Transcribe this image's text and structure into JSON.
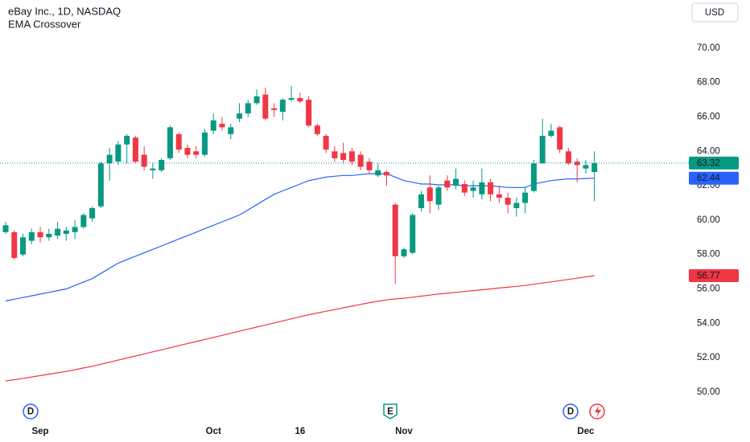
{
  "header": {
    "title": "eBay Inc., 1D, NASDAQ",
    "indicator": "EMA Crossover",
    "currency": "USD"
  },
  "events": [
    {
      "label": "D"
    },
    {
      "label": "E"
    },
    {
      "label": "D"
    }
  ],
  "chart_data": {
    "type": "candlestick",
    "up_color": "#089981",
    "down_color": "#f23645",
    "ylim": [
      48.5,
      72.8
    ],
    "yticks": [
      {
        "value": 50,
        "label": "50.00"
      },
      {
        "value": 52,
        "label": "52.00"
      },
      {
        "value": 54,
        "label": "54.00"
      },
      {
        "value": 56,
        "label": "56.00"
      },
      {
        "value": 58,
        "label": "58.00"
      },
      {
        "value": 60,
        "label": "60.00"
      },
      {
        "value": 62,
        "label": "62.00"
      },
      {
        "value": 64,
        "label": "64.00"
      },
      {
        "value": 66,
        "label": "66.00"
      },
      {
        "value": 68,
        "label": "68.00"
      },
      {
        "value": 70,
        "label": "70.00"
      }
    ],
    "xticks": [
      {
        "value": 4,
        "label": "Sep"
      },
      {
        "value": 24,
        "label": "Oct"
      },
      {
        "value": 34,
        "label": "16"
      },
      {
        "value": 46,
        "label": "Nov"
      },
      {
        "value": 67,
        "label": "Dec"
      }
    ],
    "grid": false,
    "open": [
      59.3,
      59.3,
      58.0,
      58.8,
      59.3,
      59.0,
      59.1,
      59.2,
      59.3,
      59.6,
      60.1,
      60.8,
      63.3,
      63.4,
      64.4,
      64.8,
      63.8,
      62.9,
      62.9,
      63.6,
      65.0,
      64.2,
      64.0,
      63.8,
      65.2,
      65.6,
      65.0,
      65.9,
      66.2,
      66.8,
      67.3,
      66.5,
      66.3,
      67.0,
      67.1,
      67.0,
      65.5,
      64.9,
      64.0,
      63.9,
      64.0,
      63.8,
      63.4,
      62.6,
      62.8,
      60.9,
      57.9,
      58.1,
      60.7,
      61.9,
      60.9,
      62.3,
      62.0,
      62.1,
      61.7,
      61.5,
      62.2,
      61.5,
      61.3,
      60.7,
      61.0,
      61.7,
      63.3,
      64.9,
      65.4,
      64.0,
      63.4,
      63.0,
      62.8
    ],
    "high": [
      59.9,
      59.4,
      59.2,
      59.5,
      59.6,
      59.5,
      59.9,
      59.6,
      60.0,
      60.4,
      60.8,
      63.4,
      64.2,
      64.6,
      65.0,
      64.9,
      64.3,
      63.3,
      63.6,
      65.5,
      65.1,
      64.4,
      64.3,
      65.3,
      66.2,
      66.0,
      65.6,
      66.8,
      67.0,
      67.6,
      67.7,
      66.8,
      67.1,
      67.8,
      67.4,
      67.2,
      65.6,
      65.0,
      64.3,
      64.5,
      64.2,
      64.0,
      63.6,
      63.3,
      62.9,
      61.0,
      58.4,
      60.4,
      61.7,
      62.6,
      62.0,
      62.6,
      63.0,
      62.3,
      62.3,
      63.0,
      62.4,
      62.0,
      61.6,
      61.3,
      61.9,
      63.5,
      65.9,
      65.6,
      65.5,
      64.2,
      63.6,
      63.5,
      64.0
    ],
    "low": [
      59.2,
      57.7,
      57.9,
      58.6,
      58.7,
      58.8,
      58.9,
      58.8,
      58.9,
      59.5,
      59.9,
      60.7,
      62.3,
      63.2,
      63.3,
      63.3,
      62.9,
      62.4,
      62.8,
      63.5,
      63.9,
      63.6,
      63.6,
      63.7,
      65.0,
      65.2,
      64.7,
      65.7,
      66.0,
      66.7,
      65.8,
      66.0,
      65.8,
      66.9,
      66.8,
      65.4,
      64.9,
      63.9,
      63.4,
      63.3,
      63.2,
      62.9,
      62.7,
      62.5,
      62.0,
      56.3,
      57.8,
      58.0,
      60.5,
      60.4,
      60.6,
      61.7,
      61.8,
      61.4,
      61.3,
      61.2,
      61.1,
      61.0,
      60.4,
      60.2,
      60.4,
      61.6,
      63.3,
      64.8,
      63.9,
      63.2,
      62.2,
      62.7,
      61.1
    ],
    "close": [
      59.7,
      57.8,
      59.0,
      59.3,
      59.0,
      59.2,
      59.5,
      59.4,
      59.6,
      60.3,
      60.7,
      63.3,
      63.8,
      64.4,
      64.9,
      63.4,
      63.1,
      63.0,
      63.5,
      65.4,
      64.1,
      63.8,
      63.8,
      65.1,
      65.8,
      65.4,
      65.4,
      66.2,
      66.8,
      67.2,
      65.9,
      66.4,
      67.0,
      67.1,
      66.9,
      65.5,
      65.0,
      64.1,
      63.6,
      63.5,
      63.4,
      63.1,
      62.9,
      62.9,
      62.6,
      57.9,
      58.3,
      60.3,
      61.5,
      61.1,
      61.9,
      61.9,
      62.4,
      61.6,
      61.9,
      62.2,
      61.5,
      61.3,
      60.9,
      61.0,
      61.6,
      63.3,
      64.9,
      65.2,
      64.1,
      63.3,
      63.2,
      63.2,
      63.32
    ],
    "series": [
      {
        "color": "#2962ff",
        "values": [
          55.3,
          55.4,
          55.5,
          55.6,
          55.7,
          55.8,
          55.9,
          56.0,
          56.2,
          56.4,
          56.6,
          56.9,
          57.2,
          57.5,
          57.7,
          57.9,
          58.1,
          58.3,
          58.5,
          58.7,
          58.9,
          59.1,
          59.3,
          59.5,
          59.7,
          59.9,
          60.1,
          60.3,
          60.6,
          60.9,
          61.2,
          61.5,
          61.7,
          61.9,
          62.1,
          62.3,
          62.4,
          62.5,
          62.55,
          62.6,
          62.6,
          62.65,
          62.7,
          62.7,
          62.7,
          62.5,
          62.3,
          62.2,
          62.1,
          62.1,
          62.05,
          62.05,
          62.05,
          62.0,
          62.0,
          62.0,
          62.0,
          61.95,
          61.9,
          61.9,
          61.9,
          62.1,
          62.2,
          62.3,
          62.35,
          62.4,
          62.4,
          62.42,
          62.44
        ]
      },
      {
        "color": "#f23645",
        "values": [
          50.65,
          50.72,
          50.8,
          50.88,
          50.96,
          51.04,
          51.12,
          51.2,
          51.3,
          51.4,
          51.5,
          51.62,
          51.74,
          51.86,
          51.98,
          52.1,
          52.22,
          52.34,
          52.46,
          52.58,
          52.7,
          52.82,
          52.94,
          53.06,
          53.18,
          53.3,
          53.42,
          53.54,
          53.66,
          53.78,
          53.9,
          54.02,
          54.14,
          54.26,
          54.38,
          54.5,
          54.6,
          54.7,
          54.8,
          54.9,
          55.0,
          55.1,
          55.2,
          55.28,
          55.36,
          55.42,
          55.46,
          55.52,
          55.58,
          55.64,
          55.7,
          55.75,
          55.8,
          55.85,
          55.9,
          55.95,
          56.0,
          56.05,
          56.1,
          56.15,
          56.2,
          56.27,
          56.34,
          56.41,
          56.48,
          56.55,
          56.62,
          56.7,
          56.77
        ]
      }
    ]
  }
}
